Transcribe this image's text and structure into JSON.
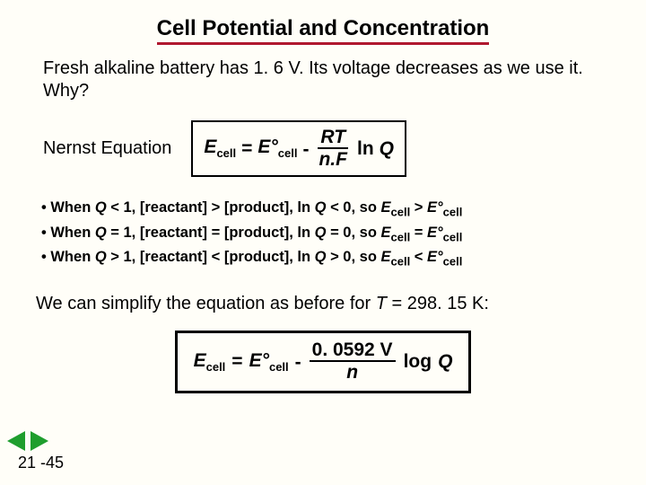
{
  "title": "Cell Potential and Concentration",
  "intro": "Fresh alkaline battery has 1. 6 V. Its voltage decreases as we use it. Why?",
  "nernst_label": "Nernst Equation",
  "eq1": {
    "lhs_E": "E",
    "lhs_sub": "cell",
    "eq": "=",
    "rhs_E0": "E°",
    "rhs_sub": "cell",
    "minus": "-",
    "num": "RT",
    "den": "n.F",
    "ln": "ln",
    "Q": "Q"
  },
  "bullets": [
    {
      "prefix": "• When ",
      "q": "Q",
      "cmp": " < 1, [reactant] > [product], ln ",
      "q2": "Q",
      "mid": " < 0, so ",
      "e": "E",
      "es": "cell",
      "rel": " > ",
      "e0": "E°",
      "e0s": "cell"
    },
    {
      "prefix": "• When ",
      "q": "Q",
      "cmp": " = 1, [reactant] = [product], ln ",
      "q2": "Q",
      "mid": " = 0, so ",
      "e": "E",
      "es": "cell",
      "rel": " = ",
      "e0": "E°",
      "e0s": "cell"
    },
    {
      "prefix": "• When ",
      "q": "Q",
      "cmp": " > 1, [reactant] < [product], ln ",
      "q2": "Q",
      "mid": " > 0, so ",
      "e": "E",
      "es": "cell",
      "rel": " < ",
      "e0": "E°",
      "e0s": "cell"
    }
  ],
  "simplify_pre": "We can simplify the equation as before for ",
  "simplify_T": "T",
  "simplify_post": " = 298. 15 K:",
  "eq2": {
    "lhs_E": "E",
    "lhs_sub": "cell",
    "eq": "=",
    "rhs_E0": "E°",
    "rhs_sub": "cell",
    "minus": "-",
    "num": "0. 0592 V",
    "den": "n",
    "log": "log",
    "Q": "Q"
  },
  "pagenum": "21 -45"
}
